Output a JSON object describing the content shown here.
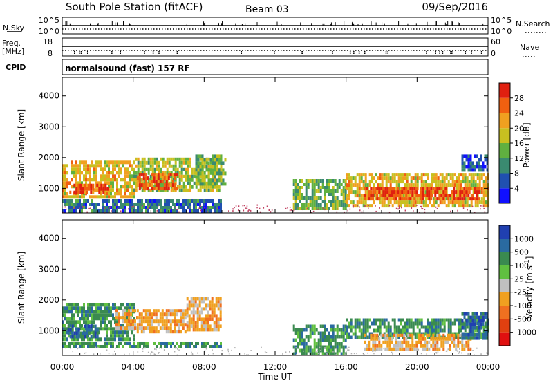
{
  "header": {
    "station": "South Pole Station (fitACF)",
    "beam": "Beam 03",
    "date": "09/Sep/2016"
  },
  "panels": {
    "nsky": {
      "label": "N.Sky",
      "ticks": [
        "10^5",
        "10^0"
      ],
      "right_ticks": [
        "10^5",
        "10^0"
      ],
      "right_label": "N.Search"
    },
    "freq": {
      "label_line1": "Freq.",
      "label_line2": "[MHz]",
      "ticks": [
        "18",
        "8"
      ],
      "right_ticks": [
        "60",
        "0"
      ],
      "right_label": "Nave"
    },
    "cpid": {
      "label": "CPID",
      "text": "normalsound (fast) 157 RF"
    }
  },
  "colors": {
    "power_scale": [
      "#1010ff",
      "#2050b0",
      "#3a8a70",
      "#60b040",
      "#c8c020",
      "#f0a020",
      "#f06010",
      "#e02010"
    ],
    "velocity_scale": [
      "#2040b0",
      "#2a6aa0",
      "#3a8a50",
      "#60c040",
      "#c0c0c0",
      "#f0a020",
      "#f07020",
      "#e04010",
      "#e01010"
    ]
  },
  "chart_data": [
    {
      "type": "heatmap",
      "name": "power",
      "ylabel": "Slant Range [km]",
      "yticks": [
        "1000",
        "2000",
        "3000",
        "4000"
      ],
      "ylim": [
        200,
        4600
      ],
      "xlim": [
        "00:00",
        "24:00"
      ],
      "colorbar_label": "Power [dB]",
      "colorbar_ticks": [
        "4",
        "8",
        "12",
        "16",
        "20",
        "24",
        "28"
      ],
      "colorbar_range": [
        0,
        32
      ],
      "regions": [
        {
          "x0": 0.0,
          "x1": 4.0,
          "y0": 700,
          "y1": 1900,
          "level": 20
        },
        {
          "x0": 0.4,
          "x1": 2.6,
          "y0": 850,
          "y1": 1150,
          "level": 28
        },
        {
          "x0": 4.0,
          "x1": 8.9,
          "y0": 900,
          "y1": 2000,
          "level": 16
        },
        {
          "x0": 4.2,
          "x1": 6.5,
          "y0": 1000,
          "y1": 1500,
          "level": 26
        },
        {
          "x0": 7.5,
          "x1": 9.2,
          "y0": 1200,
          "y1": 2100,
          "level": 14
        },
        {
          "x0": 0.0,
          "x1": 9.0,
          "y0": 300,
          "y1": 650,
          "level": 8
        },
        {
          "x0": 13.0,
          "x1": 16.0,
          "y0": 300,
          "y1": 1300,
          "level": 14
        },
        {
          "x0": 16.0,
          "x1": 24.0,
          "y0": 400,
          "y1": 1500,
          "level": 20
        },
        {
          "x0": 17.0,
          "x1": 23.5,
          "y0": 650,
          "y1": 1050,
          "level": 28
        },
        {
          "x0": 22.5,
          "x1": 24.0,
          "y0": 1600,
          "y1": 2100,
          "level": 6
        }
      ]
    },
    {
      "type": "heatmap",
      "name": "velocity",
      "ylabel": "Slant Range [km]",
      "yticks": [
        "1000",
        "2000",
        "3000",
        "4000"
      ],
      "ylim": [
        200,
        4600
      ],
      "xlim": [
        "00:00",
        "24:00"
      ],
      "colorbar_label": "Velocity [m s^-1]",
      "colorbar_ticks": [
        "1000",
        "500",
        "100",
        "25",
        "-25",
        "-100",
        "-500",
        "-1000"
      ],
      "regions": [
        {
          "x0": 0.0,
          "x1": 4.0,
          "y0": 700,
          "y1": 1900,
          "level": 100
        },
        {
          "x0": 0.3,
          "x1": 2.0,
          "y0": 800,
          "y1": 1200,
          "level": 500
        },
        {
          "x0": 3.0,
          "x1": 4.2,
          "y0": 1100,
          "y1": 1700,
          "level": -100
        },
        {
          "x0": 4.2,
          "x1": 7.0,
          "y0": 950,
          "y1": 1700,
          "level": -100
        },
        {
          "x0": 7.0,
          "x1": 8.9,
          "y0": 1000,
          "y1": 2100,
          "level": -100
        },
        {
          "x0": 0.0,
          "x1": 9.0,
          "y0": 450,
          "y1": 650,
          "level": 100
        },
        {
          "x0": 13.0,
          "x1": 16.0,
          "y0": 300,
          "y1": 1200,
          "level": 100
        },
        {
          "x0": 16.0,
          "x1": 24.0,
          "y0": 800,
          "y1": 1400,
          "level": 100
        },
        {
          "x0": 17.0,
          "x1": 23.0,
          "y0": 400,
          "y1": 900,
          "level": -100
        },
        {
          "x0": 22.5,
          "x1": 24.0,
          "y0": 800,
          "y1": 1600,
          "level": 500
        }
      ]
    }
  ],
  "xaxis": {
    "ticks": [
      "00:00",
      "04:00",
      "08:00",
      "12:00",
      "16:00",
      "20:00",
      "00:00"
    ],
    "label": "Time UT"
  }
}
